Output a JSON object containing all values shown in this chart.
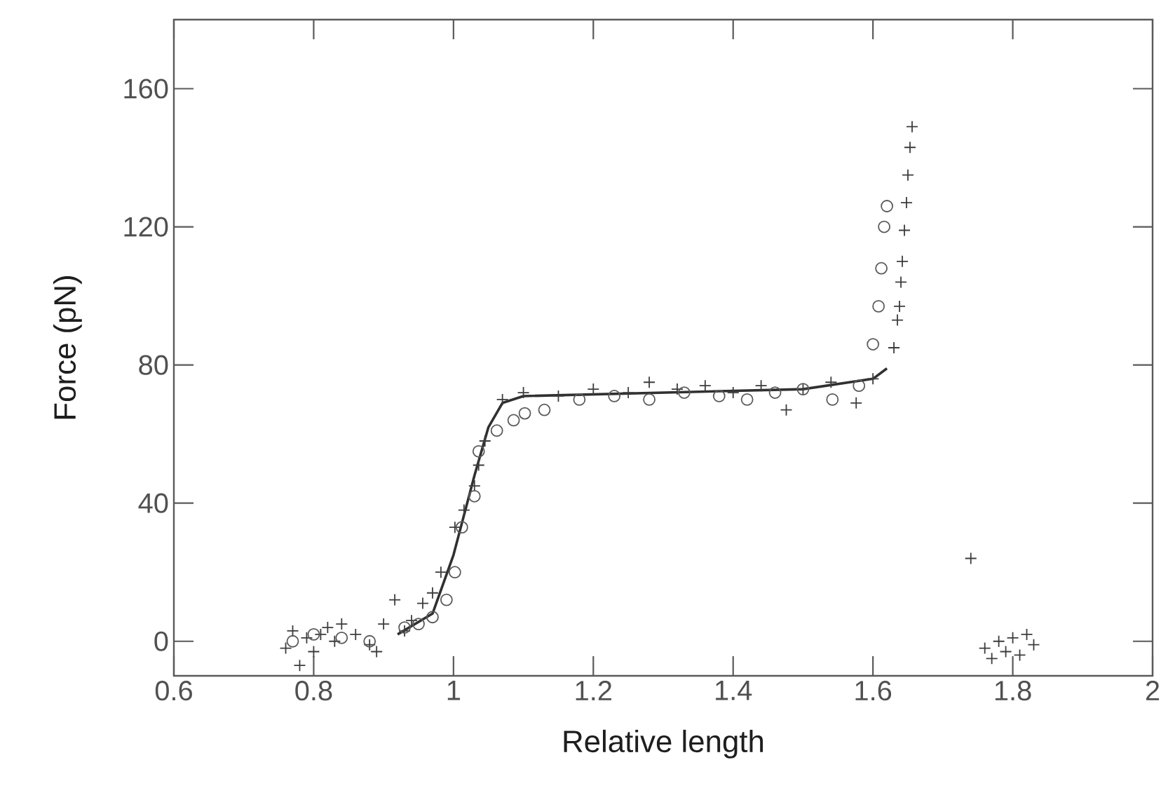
{
  "chart_data": {
    "type": "scatter",
    "xlabel": "Relative length",
    "ylabel": "Force (pN)",
    "xlim": [
      0.6,
      2
    ],
    "ylim": [
      -10,
      180
    ],
    "xticks": [
      0.6,
      0.8,
      1,
      1.2,
      1.4,
      1.6,
      1.8,
      2
    ],
    "yticks": [
      0,
      40,
      80,
      120,
      160
    ],
    "grid": false,
    "series": [
      {
        "marker": "cross",
        "color": "#3c3c3c",
        "x": [
          0.76,
          0.77,
          0.78,
          0.79,
          0.8,
          0.81,
          0.82,
          0.83,
          0.84,
          0.86,
          0.88,
          0.89,
          0.9,
          0.916,
          0.93,
          0.94,
          0.956,
          0.97,
          0.982,
          1.002,
          1.015,
          1.03,
          1.036,
          1.045,
          1.07,
          1.1,
          1.15,
          1.2,
          1.25,
          1.28,
          1.32,
          1.36,
          1.4,
          1.44,
          1.476,
          1.5,
          1.54,
          1.576,
          1.6,
          1.63,
          1.635,
          1.638,
          1.64,
          1.642,
          1.645,
          1.648,
          1.65,
          1.653,
          1.656,
          1.74,
          1.76,
          1.77,
          1.78,
          1.79,
          1.8,
          1.81,
          1.82,
          1.83
        ],
        "values": [
          -2,
          3,
          -7,
          1,
          -3,
          2,
          4,
          0,
          5,
          2,
          -1,
          -3,
          5,
          12,
          3,
          6,
          11,
          14,
          20,
          33,
          38,
          45,
          51,
          58,
          70,
          72,
          71,
          73,
          72,
          75,
          73,
          74,
          72,
          74,
          67,
          73,
          75,
          69,
          76,
          85,
          93,
          97,
          104,
          110,
          119,
          127,
          135,
          143,
          149,
          24,
          -2,
          -5,
          0,
          -3,
          1,
          -4,
          2,
          -1
        ]
      },
      {
        "marker": "circle",
        "color": "#5a5a5a",
        "x": [
          0.77,
          0.8,
          0.84,
          0.88,
          0.93,
          0.95,
          0.97,
          0.99,
          1.002,
          1.012,
          1.03,
          1.036,
          1.062,
          1.086,
          1.102,
          1.13,
          1.18,
          1.23,
          1.28,
          1.33,
          1.38,
          1.42,
          1.46,
          1.5,
          1.542,
          1.58,
          1.6,
          1.608,
          1.612,
          1.616,
          1.62
        ],
        "values": [
          0,
          2,
          1,
          0,
          4,
          5,
          7,
          12,
          20,
          33,
          42,
          55,
          61,
          64,
          66,
          67,
          70,
          71,
          70,
          72,
          71,
          70,
          72,
          73,
          70,
          74,
          86,
          97,
          108,
          120,
          126
        ]
      },
      {
        "type": "line",
        "marker": "none",
        "line_style": "solid",
        "color": "#303030",
        "x": [
          0.92,
          0.97,
          1.0,
          1.03,
          1.05,
          1.07,
          1.1,
          1.3,
          1.5,
          1.6,
          1.62
        ],
        "values": [
          2,
          8,
          25,
          48,
          62,
          69,
          71,
          72,
          73,
          76,
          79
        ]
      }
    ]
  }
}
